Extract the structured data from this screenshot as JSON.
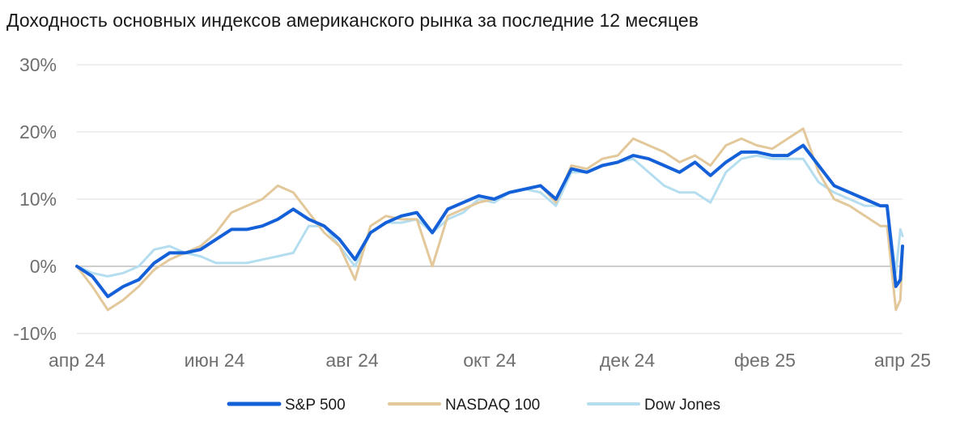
{
  "chart_data": {
    "type": "line",
    "title": "Доходность основных индексов американского рынка за последние 12 месяцев",
    "xlabel": "",
    "ylabel": "",
    "x_ticks": [
      "апр 24",
      "июн 24",
      "авг 24",
      "окт 24",
      "дек 24",
      "фев 25",
      "апр 25"
    ],
    "y_ticks": [
      "30%",
      "20%",
      "10%",
      "0%",
      "-10%"
    ],
    "y_tick_values": [
      30,
      20,
      10,
      0,
      -10
    ],
    "ylim": [
      -10,
      30
    ],
    "xlim": [
      "2024-04-01",
      "2025-04-10"
    ],
    "grid": "horizontal",
    "legend_position": "bottom",
    "x": [
      "2024-04-01",
      "2024-04-08",
      "2024-04-15",
      "2024-04-22",
      "2024-04-29",
      "2024-05-06",
      "2024-05-13",
      "2024-05-20",
      "2024-05-27",
      "2024-06-03",
      "2024-06-10",
      "2024-06-17",
      "2024-06-24",
      "2024-07-01",
      "2024-07-08",
      "2024-07-15",
      "2024-07-22",
      "2024-07-29",
      "2024-08-05",
      "2024-08-12",
      "2024-08-19",
      "2024-08-26",
      "2024-09-02",
      "2024-09-09",
      "2024-09-16",
      "2024-09-23",
      "2024-09-30",
      "2024-10-07",
      "2024-10-14",
      "2024-10-21",
      "2024-10-28",
      "2024-11-04",
      "2024-11-11",
      "2024-11-18",
      "2024-11-25",
      "2024-12-02",
      "2024-12-09",
      "2024-12-16",
      "2024-12-23",
      "2024-12-30",
      "2025-01-06",
      "2025-01-13",
      "2025-01-20",
      "2025-01-27",
      "2025-02-03",
      "2025-02-10",
      "2025-02-17",
      "2025-02-24",
      "2025-03-03",
      "2025-03-10",
      "2025-03-17",
      "2025-03-24",
      "2025-03-31",
      "2025-04-03",
      "2025-04-07",
      "2025-04-09",
      "2025-04-10"
    ],
    "series": [
      {
        "name": "S&P 500",
        "color": "#1460d8",
        "width": 4,
        "values": [
          0,
          -1.5,
          -4.5,
          -3,
          -2,
          0.5,
          2,
          2,
          2.5,
          4,
          5.5,
          5.5,
          6,
          7,
          8.5,
          7,
          6,
          4,
          1,
          5,
          6.5,
          7.5,
          8,
          5,
          8.5,
          9.5,
          10.5,
          10,
          11,
          11.5,
          12,
          10,
          14.5,
          14,
          15,
          15.5,
          16.5,
          16,
          15,
          14,
          15.5,
          13.5,
          15.5,
          17,
          17,
          16.5,
          16.5,
          18,
          15,
          12,
          11,
          10,
          9,
          9,
          -3,
          -2,
          3
        ]
      },
      {
        "name": "NASDAQ 100",
        "color": "#e2c89a",
        "width": 3,
        "values": [
          0,
          -3,
          -6.5,
          -5,
          -3,
          -0.5,
          1,
          2,
          3,
          5,
          8,
          9,
          10,
          12,
          11,
          8,
          5,
          3,
          -2,
          6,
          7.5,
          7,
          7,
          0,
          7.5,
          8.5,
          9.5,
          10,
          11,
          11.5,
          12,
          9.5,
          15,
          14.5,
          16,
          16.5,
          19,
          18,
          17,
          15.5,
          16.5,
          15,
          18,
          19,
          18,
          17.5,
          19,
          20.5,
          14,
          10,
          9,
          7.5,
          6,
          6,
          -6.5,
          -5,
          2
        ]
      },
      {
        "name": "Dow Jones",
        "color": "#b4def0",
        "width": 3,
        "values": [
          0,
          -1,
          -1.5,
          -1,
          0,
          2.5,
          3,
          2,
          1.5,
          0.5,
          0.5,
          0.5,
          1,
          1.5,
          2,
          6,
          6,
          3,
          0,
          5,
          6.5,
          6.5,
          7,
          5,
          7,
          8,
          10,
          9.5,
          11,
          11.5,
          11,
          9,
          14,
          14,
          15,
          15.5,
          16,
          14,
          12,
          11,
          11,
          9.5,
          14,
          16,
          16.5,
          16,
          16,
          16,
          12.5,
          11,
          10,
          9,
          9,
          9,
          -1,
          5.5,
          4.5
        ]
      }
    ]
  }
}
